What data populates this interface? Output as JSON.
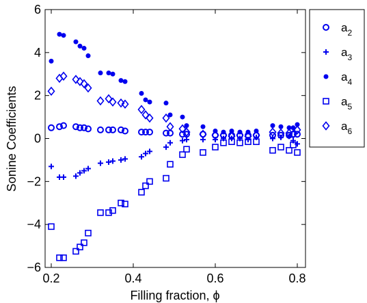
{
  "chart_data": {
    "type": "scatter",
    "xlabel": "Filling fraction, ϕ",
    "ylabel": "Sonine Coefficients",
    "xlim": [
      0.185,
      0.82
    ],
    "ylim": [
      -6,
      6
    ],
    "xticks": [
      0.2,
      0.4,
      0.6,
      0.8
    ],
    "xtick_labels": [
      "0.2",
      "0.4",
      "0.6",
      "0.8"
    ],
    "yticks": [
      -6,
      -4,
      -2,
      0,
      2,
      4,
      6
    ],
    "ytick_labels": [
      "−6",
      "−4",
      "−2",
      "0",
      "2",
      "4",
      "6"
    ],
    "grid": false,
    "legend_position": "outside top-right",
    "color": "#0000ee",
    "series": [
      {
        "name": "a",
        "subscript": "2",
        "marker": "circle",
        "x": [
          0.2,
          0.22,
          0.23,
          0.26,
          0.27,
          0.28,
          0.29,
          0.32,
          0.34,
          0.35,
          0.37,
          0.38,
          0.42,
          0.43,
          0.44,
          0.48,
          0.49,
          0.52,
          0.53,
          0.57,
          0.6,
          0.62,
          0.64,
          0.66,
          0.68,
          0.7,
          0.74,
          0.76,
          0.78,
          0.79,
          0.8
        ],
        "y": [
          0.5,
          0.55,
          0.6,
          0.55,
          0.5,
          0.5,
          0.45,
          0.4,
          0.4,
          0.4,
          0.4,
          0.35,
          0.3,
          0.3,
          0.3,
          0.25,
          0.25,
          0.2,
          0.2,
          0.2,
          0.15,
          0.15,
          0.15,
          0.15,
          0.15,
          0.15,
          0.15,
          0.15,
          0.15,
          0.2,
          0.2
        ]
      },
      {
        "name": "a",
        "subscript": "3",
        "marker": "plus",
        "x": [
          0.2,
          0.22,
          0.23,
          0.26,
          0.27,
          0.28,
          0.29,
          0.32,
          0.34,
          0.35,
          0.37,
          0.38,
          0.42,
          0.43,
          0.44,
          0.48,
          0.49,
          0.52,
          0.53,
          0.57,
          0.6,
          0.62,
          0.64,
          0.66,
          0.68,
          0.7,
          0.74,
          0.76,
          0.78,
          0.79,
          0.8
        ],
        "y": [
          -1.3,
          -1.8,
          -1.8,
          -1.75,
          -1.6,
          -1.5,
          -1.4,
          -1.15,
          -1.1,
          -1.05,
          -1.0,
          -0.95,
          -0.85,
          -0.7,
          -0.6,
          -0.4,
          -0.2,
          -0.1,
          -0.05,
          -0.05,
          -0.05,
          0.0,
          0.0,
          0.0,
          -0.05,
          0.05,
          0.0,
          0.05,
          0.1,
          -0.1,
          -0.25
        ]
      },
      {
        "name": "a",
        "subscript": "4",
        "marker": "dot",
        "x": [
          0.2,
          0.22,
          0.23,
          0.26,
          0.27,
          0.28,
          0.29,
          0.32,
          0.34,
          0.35,
          0.37,
          0.38,
          0.42,
          0.43,
          0.44,
          0.48,
          0.49,
          0.52,
          0.53,
          0.57,
          0.6,
          0.62,
          0.64,
          0.66,
          0.68,
          0.7,
          0.74,
          0.76,
          0.78,
          0.79,
          0.8
        ],
        "y": [
          3.6,
          4.85,
          4.8,
          4.5,
          4.3,
          4.2,
          3.85,
          3.05,
          3.05,
          3.0,
          2.7,
          2.65,
          2.1,
          1.8,
          1.7,
          1.65,
          1.1,
          1.0,
          0.6,
          0.55,
          0.35,
          0.3,
          0.35,
          0.3,
          0.3,
          0.35,
          0.6,
          0.55,
          0.5,
          0.5,
          0.65
        ]
      },
      {
        "name": "a",
        "subscript": "5",
        "marker": "square",
        "x": [
          0.2,
          0.22,
          0.23,
          0.26,
          0.27,
          0.28,
          0.29,
          0.32,
          0.34,
          0.35,
          0.37,
          0.38,
          0.42,
          0.43,
          0.44,
          0.48,
          0.49,
          0.52,
          0.53,
          0.57,
          0.6,
          0.62,
          0.64,
          0.66,
          0.68,
          0.7,
          0.74,
          0.76,
          0.78,
          0.79,
          0.8
        ],
        "y": [
          -4.1,
          -5.55,
          -5.55,
          -5.25,
          -5.05,
          -4.85,
          -4.4,
          -3.45,
          -3.45,
          -3.35,
          -3.0,
          -3.05,
          -2.5,
          -2.2,
          -2.0,
          -1.85,
          -1.2,
          -0.75,
          -0.5,
          -0.65,
          -0.4,
          -0.2,
          -0.15,
          -0.2,
          -0.15,
          -0.15,
          -0.55,
          -0.4,
          -0.55,
          -0.3,
          -0.65
        ]
      },
      {
        "name": "a",
        "subscript": "6",
        "marker": "diamond",
        "x": [
          0.2,
          0.22,
          0.23,
          0.26,
          0.27,
          0.28,
          0.29,
          0.32,
          0.34,
          0.35,
          0.37,
          0.38,
          0.42,
          0.43,
          0.44,
          0.48,
          0.49,
          0.52,
          0.53,
          0.57,
          0.6,
          0.62,
          0.64,
          0.66,
          0.68,
          0.7,
          0.74,
          0.76,
          0.78,
          0.79,
          0.8
        ],
        "y": [
          2.2,
          2.8,
          2.9,
          2.75,
          2.65,
          2.55,
          2.35,
          1.75,
          1.85,
          1.7,
          1.65,
          1.6,
          1.35,
          1.1,
          0.95,
          0.95,
          0.55,
          0.45,
          0.3,
          0.2,
          0.15,
          0.15,
          0.1,
          0.15,
          0.1,
          0.15,
          0.3,
          0.25,
          0.25,
          0.2,
          0.4
        ]
      }
    ]
  }
}
